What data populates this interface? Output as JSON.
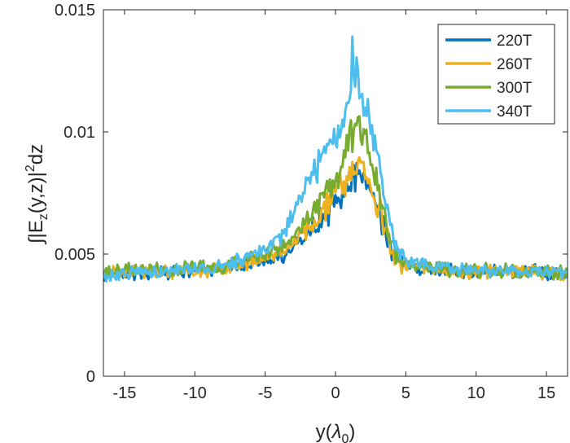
{
  "chart_data": {
    "type": "line",
    "title": "",
    "xlabel_parts": {
      "main": "y(",
      "symbol": "λ",
      "sub": "0",
      "close": ")"
    },
    "ylabel_parts": {
      "integral": "∫",
      "a": "|E",
      "sub": "z",
      "b": "(y,z)|",
      "sup": "2",
      "c": "dz"
    },
    "xlim": [
      -16.5,
      16.5
    ],
    "ylim": [
      0,
      0.015
    ],
    "xticks": [
      -15,
      -10,
      -5,
      0,
      5,
      10,
      15
    ],
    "xtick_labels": [
      "-15",
      "-10",
      "-5",
      "0",
      "5",
      "10",
      "15"
    ],
    "yticks": [
      0,
      0.005,
      0.01,
      0.015
    ],
    "ytick_labels": [
      "0",
      "0.005",
      "0.01",
      "0.015"
    ],
    "grid": false,
    "legend_position": "top-right",
    "noise_amplitude": 0.00022,
    "series": [
      {
        "name": "220T",
        "color": "#0072BD",
        "profile": {
          "x": [
            -16.5,
            -12,
            -8,
            -6,
            -4,
            -3,
            -2,
            -1,
            0,
            1,
            1.5,
            2,
            3,
            4,
            5,
            8,
            12,
            16.5
          ],
          "y": [
            0.0042,
            0.0043,
            0.0044,
            0.0046,
            0.0049,
            0.0053,
            0.0058,
            0.0064,
            0.0072,
            0.008,
            0.0083,
            0.0081,
            0.0068,
            0.005,
            0.0045,
            0.0043,
            0.0043,
            0.0042
          ]
        }
      },
      {
        "name": "260T",
        "color": "#EDB120",
        "profile": {
          "x": [
            -16.5,
            -12,
            -8,
            -6,
            -4,
            -3,
            -2,
            -1,
            0,
            1,
            1.5,
            2,
            3,
            4,
            5,
            8,
            12,
            16.5
          ],
          "y": [
            0.0042,
            0.0043,
            0.0044,
            0.0047,
            0.005,
            0.0054,
            0.006,
            0.0066,
            0.0075,
            0.0084,
            0.0087,
            0.0085,
            0.007,
            0.0051,
            0.0045,
            0.0043,
            0.0043,
            0.0042
          ]
        }
      },
      {
        "name": "300T",
        "color": "#77AC30",
        "profile": {
          "x": [
            -16.5,
            -12,
            -8,
            -6,
            -4,
            -3,
            -2,
            -1,
            0,
            1,
            1.5,
            2,
            3,
            4,
            5,
            8,
            12,
            16.5
          ],
          "y": [
            0.0043,
            0.0044,
            0.0045,
            0.0048,
            0.0052,
            0.0057,
            0.0064,
            0.0072,
            0.0082,
            0.0096,
            0.0104,
            0.0098,
            0.0078,
            0.0053,
            0.0046,
            0.0044,
            0.0043,
            0.0042
          ]
        }
      },
      {
        "name": "340T",
        "color": "#4DBEEE",
        "profile": {
          "x": [
            -16.5,
            -12,
            -8,
            -6,
            -4,
            -3,
            -2,
            -1,
            0,
            1,
            1.5,
            2,
            3,
            4,
            5,
            8,
            12,
            16.5
          ],
          "y": [
            0.0041,
            0.0043,
            0.0045,
            0.0049,
            0.0055,
            0.0066,
            0.0078,
            0.0088,
            0.0099,
            0.0115,
            0.0122,
            0.0114,
            0.009,
            0.0058,
            0.0047,
            0.0044,
            0.0043,
            0.0042
          ]
        },
        "peak": {
          "x": 1.2,
          "y": 0.0139
        }
      }
    ]
  }
}
